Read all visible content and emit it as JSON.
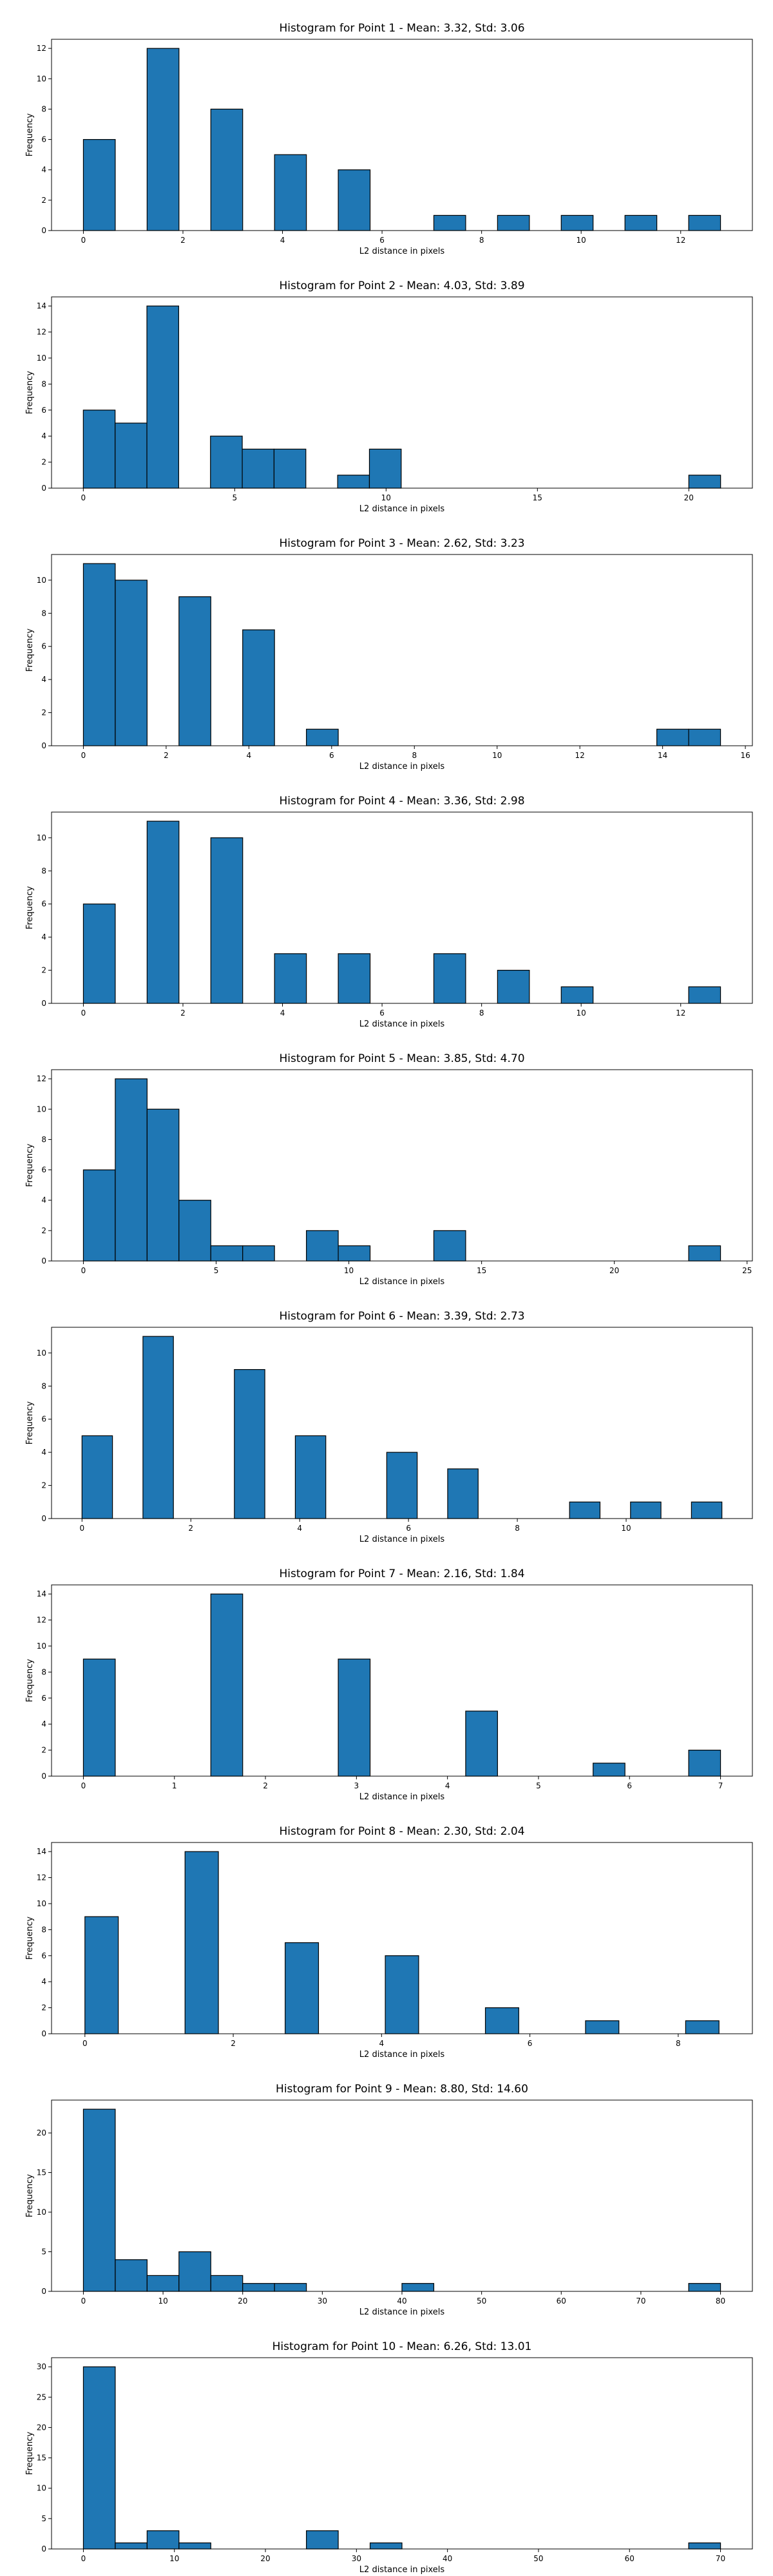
{
  "chart_data": [
    {
      "type": "bar",
      "title": "Histogram for Point 1 - Mean: 3.32, Std: 3.06",
      "xlabel": "L2 distance in pixels",
      "ylabel": "Frequency",
      "bin_width": 0.64,
      "bins": [
        [
          0.0,
          6
        ],
        [
          1.28,
          12
        ],
        [
          2.56,
          8
        ],
        [
          3.84,
          5
        ],
        [
          5.12,
          4
        ],
        [
          7.04,
          1
        ],
        [
          8.32,
          1
        ],
        [
          9.6,
          1
        ],
        [
          10.88,
          1
        ],
        [
          12.16,
          1
        ]
      ],
      "xlim": [
        -0.64,
        13.44
      ],
      "ylim": [
        0,
        12.6
      ],
      "xticks": [
        0,
        2,
        4,
        6,
        8,
        10,
        12
      ],
      "yticks": [
        0,
        2,
        4,
        6,
        8,
        10,
        12
      ]
    },
    {
      "type": "bar",
      "title": "Histogram for Point 2 - Mean: 4.03, Std: 3.89",
      "xlabel": "L2 distance in pixels",
      "ylabel": "Frequency",
      "bin_width": 1.05,
      "bins": [
        [
          0.0,
          6
        ],
        [
          1.05,
          5
        ],
        [
          2.1,
          14
        ],
        [
          4.2,
          4
        ],
        [
          5.25,
          3
        ],
        [
          6.3,
          3
        ],
        [
          8.4,
          1
        ],
        [
          9.45,
          3
        ],
        [
          20.0,
          1
        ]
      ],
      "xlim": [
        -1.05,
        22.1
      ],
      "ylim": [
        0,
        14.7
      ],
      "xticks": [
        0,
        5,
        10,
        15,
        20
      ],
      "yticks": [
        0,
        2,
        4,
        6,
        8,
        10,
        12,
        14
      ]
    },
    {
      "type": "bar",
      "title": "Histogram for Point 3 - Mean: 2.62, Std: 3.23",
      "xlabel": "L2 distance in pixels",
      "ylabel": "Frequency",
      "bin_width": 0.77,
      "bins": [
        [
          0.0,
          11
        ],
        [
          0.77,
          10
        ],
        [
          2.31,
          9
        ],
        [
          3.85,
          7
        ],
        [
          5.39,
          1
        ],
        [
          13.86,
          1
        ],
        [
          14.63,
          1
        ]
      ],
      "xlim": [
        -0.77,
        16.17
      ],
      "ylim": [
        0,
        11.55
      ],
      "xticks": [
        0,
        2,
        4,
        6,
        8,
        10,
        12,
        14,
        16
      ],
      "yticks": [
        0,
        2,
        4,
        6,
        8,
        10
      ]
    },
    {
      "type": "bar",
      "title": "Histogram for Point 4 - Mean: 3.36, Std: 2.98",
      "xlabel": "L2 distance in pixels",
      "ylabel": "Frequency",
      "bin_width": 0.64,
      "bins": [
        [
          0.0,
          6
        ],
        [
          1.28,
          11
        ],
        [
          2.56,
          10
        ],
        [
          3.84,
          3
        ],
        [
          5.12,
          3
        ],
        [
          7.04,
          3
        ],
        [
          8.32,
          2
        ],
        [
          9.6,
          1
        ],
        [
          12.16,
          1
        ]
      ],
      "xlim": [
        -0.64,
        13.44
      ],
      "ylim": [
        0,
        11.55
      ],
      "xticks": [
        0,
        2,
        4,
        6,
        8,
        10,
        12
      ],
      "yticks": [
        0,
        2,
        4,
        6,
        8,
        10
      ]
    },
    {
      "type": "bar",
      "title": "Histogram for Point 5 - Mean: 3.85, Std: 4.70",
      "xlabel": "L2 distance in pixels",
      "ylabel": "Frequency",
      "bin_width": 1.2,
      "bins": [
        [
          0.0,
          6
        ],
        [
          1.2,
          12
        ],
        [
          2.4,
          10
        ],
        [
          3.6,
          4
        ],
        [
          4.8,
          1
        ],
        [
          6.0,
          1
        ],
        [
          8.4,
          2
        ],
        [
          9.6,
          1
        ],
        [
          13.2,
          2
        ],
        [
          22.8,
          1
        ]
      ],
      "xlim": [
        -1.2,
        25.2
      ],
      "ylim": [
        0,
        12.6
      ],
      "xticks": [
        0,
        5,
        10,
        15,
        20,
        25
      ],
      "yticks": [
        0,
        2,
        4,
        6,
        8,
        10,
        12
      ]
    },
    {
      "type": "bar",
      "title": "Histogram for Point 6 - Mean: 3.39, Std: 2.73",
      "xlabel": "L2 distance in pixels",
      "ylabel": "Frequency",
      "bin_width": 0.56,
      "bins": [
        [
          0.0,
          5
        ],
        [
          1.12,
          11
        ],
        [
          2.8,
          9
        ],
        [
          3.92,
          5
        ],
        [
          5.6,
          4
        ],
        [
          6.72,
          3
        ],
        [
          8.96,
          1
        ],
        [
          10.08,
          1
        ],
        [
          11.2,
          1
        ]
      ],
      "xlim": [
        -0.56,
        12.32
      ],
      "ylim": [
        0,
        11.55
      ],
      "xticks": [
        0,
        2,
        4,
        6,
        8,
        10
      ],
      "yticks": [
        0,
        2,
        4,
        6,
        8,
        10
      ]
    },
    {
      "type": "bar",
      "title": "Histogram for Point 7 - Mean: 2.16, Std: 1.84",
      "xlabel": "L2 distance in pixels",
      "ylabel": "Frequency",
      "bin_width": 0.35,
      "bins": [
        [
          0.0,
          9
        ],
        [
          1.4,
          14
        ],
        [
          2.8,
          9
        ],
        [
          4.2,
          5
        ],
        [
          5.6,
          1
        ],
        [
          6.65,
          2
        ]
      ],
      "xlim": [
        -0.35,
        7.35
      ],
      "ylim": [
        0,
        14.7
      ],
      "xticks": [
        0,
        1,
        2,
        3,
        4,
        5,
        6,
        7
      ],
      "yticks": [
        0,
        2,
        4,
        6,
        8,
        10,
        12,
        14
      ]
    },
    {
      "type": "bar",
      "title": "Histogram for Point 8 - Mean: 2.30, Std: 2.04",
      "xlabel": "L2 distance in pixels",
      "ylabel": "Frequency",
      "bin_width": 0.45,
      "bins": [
        [
          0.0,
          9
        ],
        [
          1.35,
          14
        ],
        [
          2.7,
          7
        ],
        [
          4.05,
          6
        ],
        [
          5.4,
          2
        ],
        [
          6.75,
          1
        ],
        [
          8.1,
          1
        ]
      ],
      "xlim": [
        -0.45,
        9.0
      ],
      "ylim": [
        0,
        14.7
      ],
      "xticks": [
        0,
        2,
        4,
        6,
        8
      ],
      "yticks": [
        0,
        2,
        4,
        6,
        8,
        10,
        12,
        14
      ]
    },
    {
      "type": "bar",
      "title": "Histogram for Point 9 - Mean: 8.80, Std: 14.60",
      "xlabel": "L2 distance in pixels",
      "ylabel": "Frequency",
      "bin_width": 4.0,
      "bins": [
        [
          0.0,
          23
        ],
        [
          4.0,
          4
        ],
        [
          8.0,
          2
        ],
        [
          12.0,
          5
        ],
        [
          16.0,
          2
        ],
        [
          20.0,
          1
        ],
        [
          24.0,
          1
        ],
        [
          40.0,
          1
        ],
        [
          76.0,
          1
        ]
      ],
      "xlim": [
        -4.0,
        84.0
      ],
      "ylim": [
        0,
        24.15
      ],
      "xticks": [
        0,
        10,
        20,
        30,
        40,
        50,
        60,
        70,
        80
      ],
      "yticks": [
        0,
        5,
        10,
        15,
        20
      ]
    },
    {
      "type": "bar",
      "title": "Histogram for Point 10 - Mean: 6.26, Std: 13.01",
      "xlabel": "L2 distance in pixels",
      "ylabel": "Frequency",
      "bin_width": 3.5,
      "bins": [
        [
          0.0,
          30
        ],
        [
          3.5,
          1
        ],
        [
          7.0,
          3
        ],
        [
          10.5,
          1
        ],
        [
          24.5,
          3
        ],
        [
          31.5,
          1
        ],
        [
          66.5,
          1
        ]
      ],
      "xlim": [
        -3.5,
        73.5
      ],
      "ylim": [
        0,
        31.5
      ],
      "xticks": [
        0,
        10,
        20,
        30,
        40,
        50,
        60,
        70
      ],
      "yticks": [
        0,
        5,
        10,
        15,
        20,
        25,
        30
      ]
    }
  ],
  "style": {
    "bar_color": "#1f77b4",
    "edge_color": "#000000"
  }
}
